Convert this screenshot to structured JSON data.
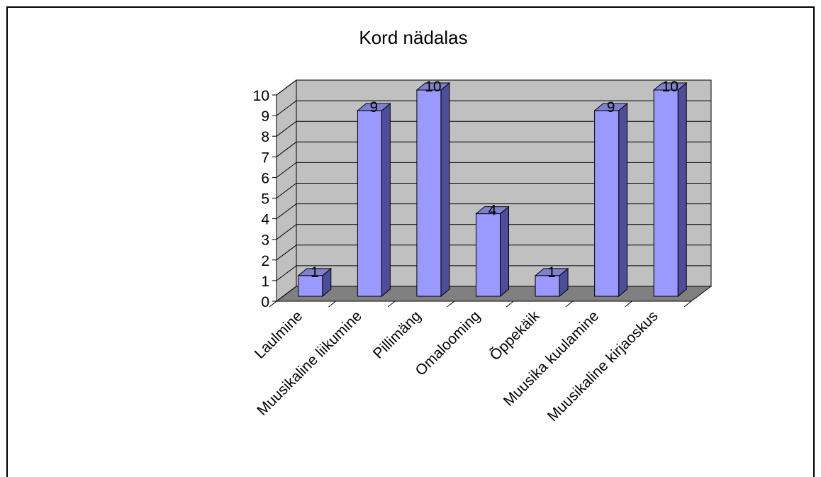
{
  "chart_data": {
    "type": "bar",
    "title": "Kord nädalas",
    "categories": [
      "Laulmine",
      "Muusikaline liikumine",
      "Pillimäng",
      "Omalooming",
      "Õppekäik",
      "Muusika kuulamine",
      "Muusikaline kirjaoskus"
    ],
    "values": [
      1,
      9,
      10,
      4,
      1,
      9,
      10
    ],
    "color": "#9999ff",
    "ylim": [
      0,
      10
    ],
    "yticks": [
      0,
      1,
      2,
      3,
      4,
      5,
      6,
      7,
      8,
      9,
      10
    ],
    "grid": true
  }
}
